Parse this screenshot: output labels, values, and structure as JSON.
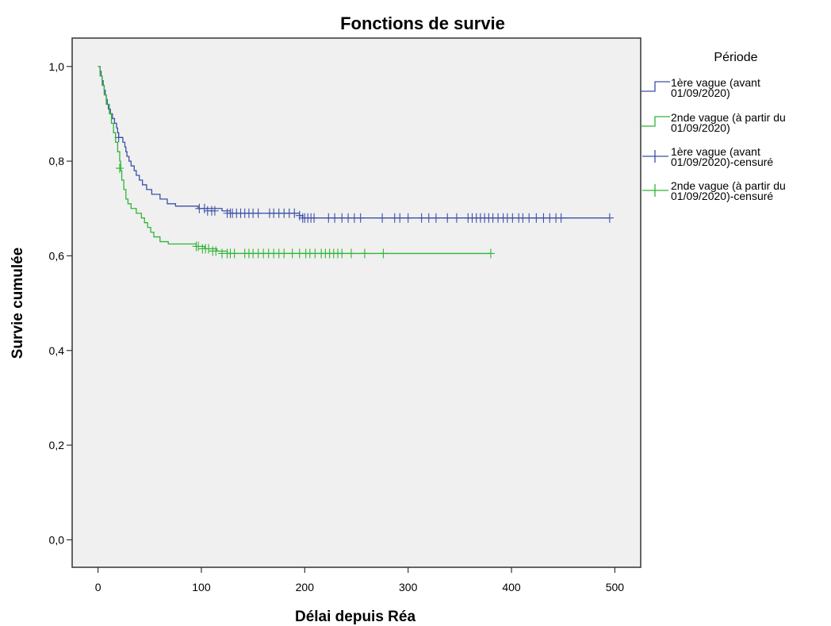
{
  "chart_data": {
    "type": "line",
    "title": "Fonctions de survie",
    "xlabel": "Délai depuis Réa",
    "ylabel": "Survie cumulée",
    "xlim": [
      -25,
      525
    ],
    "ylim": [
      -0.058,
      1.06
    ],
    "x_ticks": [
      0,
      100,
      200,
      300,
      400,
      500
    ],
    "x_tick_labels": [
      "0",
      "100",
      "200",
      "300",
      "400",
      "500"
    ],
    "y_ticks": [
      0.0,
      0.2,
      0.4,
      0.6,
      0.8,
      1.0
    ],
    "y_tick_labels": [
      "0,0",
      "0,2",
      "0,4",
      "0,6",
      "0,8",
      "1,0"
    ],
    "grid": false,
    "legend_position": "right",
    "plot_background": "#f0f0f0",
    "legend_title": "Période",
    "legend": [
      {
        "lines": [
          "1ère vague (avant",
          "01/09/2020)"
        ],
        "kind": "line",
        "color": "#3c4fa8"
      },
      {
        "lines": [
          "2nde vague (à partir du",
          "01/09/2020)"
        ],
        "kind": "line",
        "color": "#2fb536"
      },
      {
        "lines": [
          "1ère vague (avant",
          "01/09/2020)-censuré"
        ],
        "kind": "censor",
        "color": "#3c4fa8"
      },
      {
        "lines": [
          "2nde vague (à partir du",
          "01/09/2020)-censuré"
        ],
        "kind": "censor",
        "color": "#2fb536"
      }
    ],
    "series": [
      {
        "name": "1ère vague (avant 01/09/2020)",
        "color": "#3c4fa8",
        "steps": [
          [
            0,
            1.0
          ],
          [
            2,
            0.99
          ],
          [
            3,
            0.98
          ],
          [
            4,
            0.97
          ],
          [
            5,
            0.96
          ],
          [
            6,
            0.95
          ],
          [
            7,
            0.94
          ],
          [
            8,
            0.93
          ],
          [
            9,
            0.92
          ],
          [
            10,
            0.91
          ],
          [
            12,
            0.9
          ],
          [
            14,
            0.89
          ],
          [
            16,
            0.88
          ],
          [
            18,
            0.87
          ],
          [
            19,
            0.86
          ],
          [
            20,
            0.85
          ],
          [
            24,
            0.84
          ],
          [
            26,
            0.83
          ],
          [
            27,
            0.82
          ],
          [
            28,
            0.81
          ],
          [
            30,
            0.8
          ],
          [
            32,
            0.79
          ],
          [
            35,
            0.78
          ],
          [
            37,
            0.77
          ],
          [
            40,
            0.76
          ],
          [
            43,
            0.75
          ],
          [
            47,
            0.74
          ],
          [
            52,
            0.73
          ],
          [
            60,
            0.72
          ],
          [
            67,
            0.71
          ],
          [
            75,
            0.705
          ],
          [
            97,
            0.7
          ],
          [
            120,
            0.695
          ],
          [
            128,
            0.69
          ],
          [
            195,
            0.685
          ],
          [
            198,
            0.68
          ],
          [
            495,
            0.68
          ]
        ],
        "censored": [
          [
            20,
            0.85
          ],
          [
            98,
            0.7
          ],
          [
            103,
            0.7
          ],
          [
            106,
            0.695
          ],
          [
            110,
            0.695
          ],
          [
            113,
            0.695
          ],
          [
            125,
            0.69
          ],
          [
            128,
            0.69
          ],
          [
            130,
            0.69
          ],
          [
            134,
            0.69
          ],
          [
            138,
            0.69
          ],
          [
            142,
            0.69
          ],
          [
            146,
            0.69
          ],
          [
            150,
            0.69
          ],
          [
            155,
            0.69
          ],
          [
            166,
            0.69
          ],
          [
            170,
            0.69
          ],
          [
            175,
            0.69
          ],
          [
            180,
            0.69
          ],
          [
            185,
            0.69
          ],
          [
            190,
            0.69
          ],
          [
            195,
            0.685
          ],
          [
            198,
            0.68
          ],
          [
            200,
            0.68
          ],
          [
            203,
            0.68
          ],
          [
            206,
            0.68
          ],
          [
            209,
            0.68
          ],
          [
            223,
            0.68
          ],
          [
            229,
            0.68
          ],
          [
            236,
            0.68
          ],
          [
            242,
            0.68
          ],
          [
            248,
            0.68
          ],
          [
            254,
            0.68
          ],
          [
            275,
            0.68
          ],
          [
            287,
            0.68
          ],
          [
            292,
            0.68
          ],
          [
            300,
            0.68
          ],
          [
            313,
            0.68
          ],
          [
            320,
            0.68
          ],
          [
            327,
            0.68
          ],
          [
            338,
            0.68
          ],
          [
            347,
            0.68
          ],
          [
            358,
            0.68
          ],
          [
            362,
            0.68
          ],
          [
            366,
            0.68
          ],
          [
            370,
            0.68
          ],
          [
            374,
            0.68
          ],
          [
            378,
            0.68
          ],
          [
            382,
            0.68
          ],
          [
            387,
            0.68
          ],
          [
            392,
            0.68
          ],
          [
            396,
            0.68
          ],
          [
            401,
            0.68
          ],
          [
            407,
            0.68
          ],
          [
            411,
            0.68
          ],
          [
            417,
            0.68
          ],
          [
            424,
            0.68
          ],
          [
            431,
            0.68
          ],
          [
            437,
            0.68
          ],
          [
            443,
            0.68
          ],
          [
            448,
            0.68
          ],
          [
            495,
            0.68
          ]
        ]
      },
      {
        "name": "2nde vague (à partir du 01/09/2020)",
        "color": "#2fb536",
        "steps": [
          [
            0,
            1.0
          ],
          [
            2,
            0.98
          ],
          [
            4,
            0.96
          ],
          [
            6,
            0.94
          ],
          [
            8,
            0.92
          ],
          [
            11,
            0.9
          ],
          [
            13,
            0.88
          ],
          [
            15,
            0.86
          ],
          [
            17,
            0.84
          ],
          [
            19,
            0.82
          ],
          [
            21,
            0.8
          ],
          [
            22,
            0.78
          ],
          [
            23,
            0.76
          ],
          [
            25,
            0.74
          ],
          [
            27,
            0.72
          ],
          [
            29,
            0.71
          ],
          [
            32,
            0.7
          ],
          [
            37,
            0.69
          ],
          [
            42,
            0.68
          ],
          [
            45,
            0.67
          ],
          [
            48,
            0.66
          ],
          [
            51,
            0.65
          ],
          [
            54,
            0.64
          ],
          [
            60,
            0.63
          ],
          [
            68,
            0.625
          ],
          [
            95,
            0.62
          ],
          [
            103,
            0.615
          ],
          [
            115,
            0.61
          ],
          [
            125,
            0.605
          ],
          [
            380,
            0.605
          ]
        ],
        "censored": [
          [
            21,
            0.785
          ],
          [
            95,
            0.62
          ],
          [
            97,
            0.62
          ],
          [
            101,
            0.615
          ],
          [
            104,
            0.615
          ],
          [
            107,
            0.615
          ],
          [
            111,
            0.61
          ],
          [
            114,
            0.61
          ],
          [
            120,
            0.605
          ],
          [
            125,
            0.605
          ],
          [
            128,
            0.605
          ],
          [
            132,
            0.605
          ],
          [
            142,
            0.605
          ],
          [
            146,
            0.605
          ],
          [
            150,
            0.605
          ],
          [
            155,
            0.605
          ],
          [
            160,
            0.605
          ],
          [
            165,
            0.605
          ],
          [
            170,
            0.605
          ],
          [
            175,
            0.605
          ],
          [
            180,
            0.605
          ],
          [
            188,
            0.605
          ],
          [
            195,
            0.605
          ],
          [
            201,
            0.605
          ],
          [
            205,
            0.605
          ],
          [
            210,
            0.605
          ],
          [
            216,
            0.605
          ],
          [
            220,
            0.605
          ],
          [
            224,
            0.605
          ],
          [
            228,
            0.605
          ],
          [
            232,
            0.605
          ],
          [
            236,
            0.605
          ],
          [
            245,
            0.605
          ],
          [
            258,
            0.605
          ],
          [
            276,
            0.605
          ],
          [
            380,
            0.605
          ]
        ]
      }
    ]
  }
}
